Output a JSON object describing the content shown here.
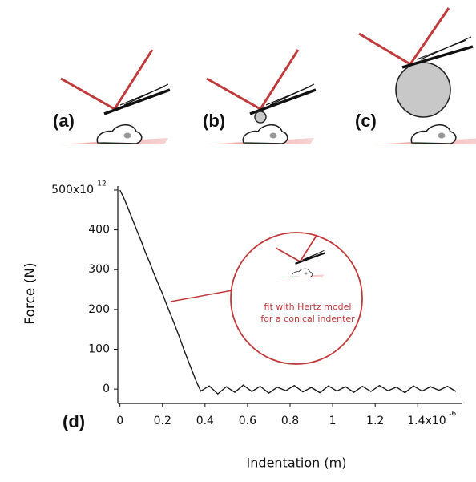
{
  "chart_data": {
    "type": "line",
    "panel_labels": [
      "(a)",
      "(b)",
      "(c)",
      "(d)"
    ],
    "xlabel": "Indentation (m)",
    "ylabel": "Force (N)",
    "inset_text": [
      "fit with Hertz model",
      "for a conical indenter"
    ],
    "x": [
      0,
      0.02,
      0.04,
      0.06,
      0.08,
      0.1,
      0.12,
      0.14,
      0.16,
      0.18,
      0.2,
      0.22,
      0.24,
      0.26,
      0.28,
      0.3,
      0.32,
      0.34,
      0.36,
      0.38,
      0.42,
      0.46,
      0.5,
      0.54,
      0.58,
      0.62,
      0.66,
      0.7,
      0.74,
      0.78,
      0.82,
      0.86,
      0.9,
      0.94,
      0.98,
      1.02,
      1.06,
      1.1,
      1.14,
      1.18,
      1.22,
      1.26,
      1.3,
      1.34,
      1.38,
      1.42,
      1.46,
      1.5,
      1.54,
      1.58
    ],
    "series": [
      {
        "color": "#1a1a1a",
        "values": [
          500,
          478,
          452,
          425,
          398,
          372,
          343,
          318,
          290,
          265,
          240,
          212,
          185,
          158,
          130,
          100,
          72,
          45,
          18,
          -5,
          8,
          -12,
          6,
          -8,
          10,
          -6,
          7,
          -10,
          5,
          -4,
          9,
          -7,
          4,
          -9,
          8,
          -5,
          6,
          -8,
          7,
          -6,
          9,
          -4,
          5,
          -9,
          8,
          -5,
          6,
          -3,
          7,
          -6
        ]
      }
    ],
    "xlim": [
      -0.01,
      1.61
    ],
    "ylim": [
      -36,
      510
    ],
    "xticks": [
      0.0,
      0.2,
      0.4,
      0.6,
      0.8,
      1.0,
      1.2,
      {
        "value": 1.4,
        "label": "1.4x10"
      }
    ],
    "x_exponent": "-6",
    "yticks": [
      0,
      100,
      200,
      300,
      400,
      {
        "value": 500,
        "label": "500x10"
      }
    ],
    "y_exponent": "-12"
  }
}
